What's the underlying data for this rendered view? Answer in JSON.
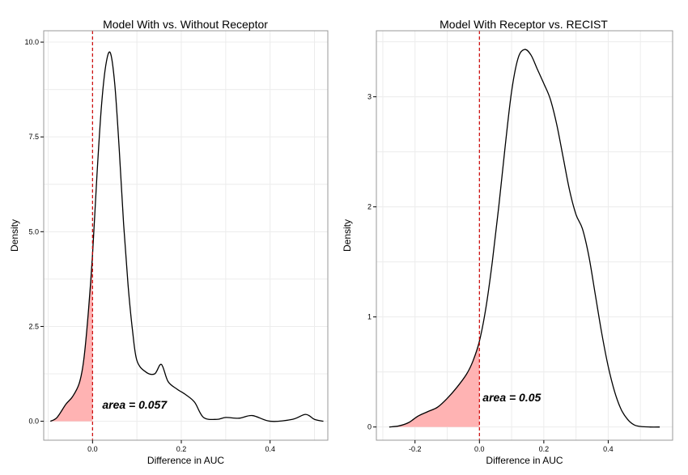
{
  "chart_data": [
    {
      "type": "area",
      "title": "Model With vs. Without Receptor",
      "xlabel": "Difference in AUC",
      "ylabel": "Density",
      "xlim": [
        -0.11,
        0.53
      ],
      "ylim": [
        -0.5,
        10.3
      ],
      "xticks": [
        0.0,
        0.2,
        0.4
      ],
      "xtick_labels": [
        "0.0",
        "0.2",
        "0.4"
      ],
      "yticks": [
        0.0,
        2.5,
        5.0,
        7.5,
        10.0
      ],
      "ytick_labels": [
        "0.0",
        "2.5",
        "5.0",
        "7.5",
        "10.0"
      ],
      "grid": true,
      "reference_line_x": 0.0,
      "shaded_region": "x < 0",
      "annotation": "area = 0.057",
      "colors": {
        "line": "#000000",
        "fill": "#ffb3b3",
        "refline": "#cc0000"
      },
      "series": [
        {
          "x": [
            -0.095,
            -0.08,
            -0.06,
            -0.045,
            -0.03,
            -0.02,
            -0.01,
            0.0,
            0.01,
            0.02,
            0.03,
            0.04,
            0.05,
            0.06,
            0.07,
            0.08,
            0.09,
            0.1,
            0.12,
            0.14,
            0.155,
            0.17,
            0.19,
            0.21,
            0.23,
            0.25,
            0.28,
            0.3,
            0.33,
            0.36,
            0.4,
            0.45,
            0.48,
            0.5,
            0.52
          ],
          "values": [
            0.0,
            0.1,
            0.45,
            0.65,
            1.0,
            1.6,
            2.8,
            4.4,
            6.5,
            8.3,
            9.4,
            9.72,
            8.9,
            7.2,
            5.2,
            3.6,
            2.4,
            1.6,
            1.3,
            1.25,
            1.5,
            1.05,
            0.85,
            0.7,
            0.5,
            0.1,
            0.05,
            0.1,
            0.08,
            0.15,
            0.0,
            0.05,
            0.18,
            0.05,
            0.0
          ]
        }
      ]
    },
    {
      "type": "area",
      "title": "Model With Receptor vs. RECIST",
      "xlabel": "Difference in AUC",
      "ylabel": "Density",
      "xlim": [
        -0.32,
        0.6
      ],
      "ylim": [
        -0.12,
        3.6
      ],
      "xticks": [
        -0.2,
        0.0,
        0.2,
        0.4
      ],
      "xtick_labels": [
        "-0.2",
        "0.0",
        "0.2",
        "0.4"
      ],
      "yticks": [
        0,
        1,
        2,
        3
      ],
      "ytick_labels": [
        "0",
        "1",
        "2",
        "3"
      ],
      "grid": true,
      "reference_line_x": 0.0,
      "shaded_region": "x < 0",
      "annotation": "area = 0.05",
      "colors": {
        "line": "#000000",
        "fill": "#ffb3b3",
        "refline": "#cc0000"
      },
      "series": [
        {
          "x": [
            -0.28,
            -0.25,
            -0.22,
            -0.19,
            -0.16,
            -0.13,
            -0.1,
            -0.07,
            -0.04,
            -0.02,
            0.0,
            0.02,
            0.04,
            0.06,
            0.08,
            0.1,
            0.12,
            0.14,
            0.16,
            0.18,
            0.2,
            0.22,
            0.24,
            0.26,
            0.28,
            0.3,
            0.32,
            0.34,
            0.36,
            0.38,
            0.4,
            0.42,
            0.44,
            0.46,
            0.48,
            0.5,
            0.53,
            0.56
          ],
          "values": [
            0.0,
            0.01,
            0.04,
            0.1,
            0.14,
            0.18,
            0.26,
            0.36,
            0.48,
            0.6,
            0.78,
            1.08,
            1.5,
            2.0,
            2.55,
            3.05,
            3.35,
            3.43,
            3.38,
            3.25,
            3.12,
            2.98,
            2.75,
            2.45,
            2.15,
            1.93,
            1.8,
            1.55,
            1.2,
            0.85,
            0.55,
            0.32,
            0.16,
            0.07,
            0.02,
            0.005,
            0.0,
            0.0
          ]
        }
      ]
    }
  ]
}
